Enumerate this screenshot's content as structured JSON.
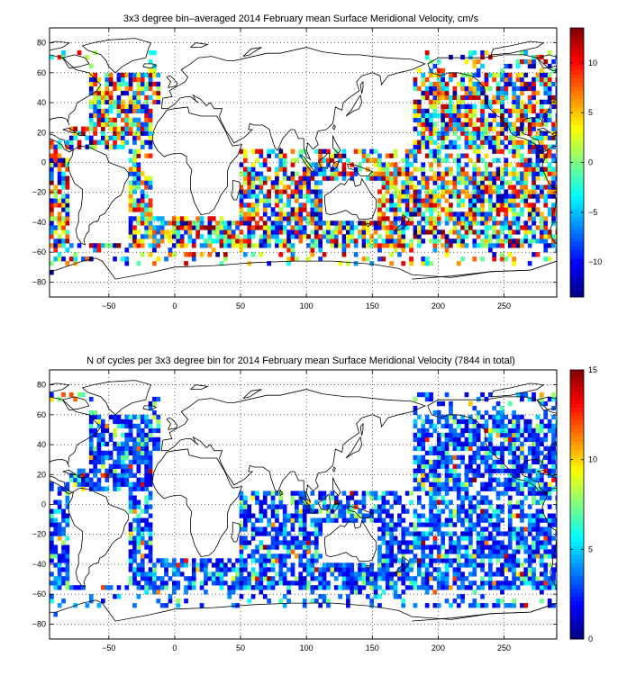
{
  "chart_data": [
    {
      "type": "heatmap",
      "title": "3x3 degree bin–averaged 2014 February mean Surface Meridional Velocity, cm/s",
      "xlim": [
        -95,
        290
      ],
      "ylim": [
        -90,
        90
      ],
      "x_ticks": [
        -50,
        0,
        50,
        100,
        150,
        200,
        250
      ],
      "x_tick_labels": [
        "−50",
        "0",
        "50",
        "100",
        "150",
        "200",
        "250"
      ],
      "y_ticks": [
        80,
        60,
        40,
        20,
        0,
        -20,
        -40,
        -60,
        -80
      ],
      "y_tick_labels": [
        "80",
        "60",
        "40",
        "20",
        "0",
        "−20",
        "−40",
        "−60",
        "−80"
      ],
      "grid": true,
      "colormap": "jet",
      "colorbar": {
        "range": [
          -13.5,
          13.5
        ],
        "ticks": [
          10,
          5,
          0,
          -5,
          -10
        ],
        "tick_labels": [
          "10",
          "5",
          "0",
          "−5",
          "−10"
        ]
      },
      "bin_size_deg": 3,
      "value_scale": [
        -13.5,
        13.5
      ]
    },
    {
      "type": "heatmap",
      "title": "N of cycles per 3x3 degree bin for 2014 February mean Surface Meridional Velocity (7844 in total)",
      "xlim": [
        -95,
        290
      ],
      "ylim": [
        -90,
        90
      ],
      "x_ticks": [
        -50,
        0,
        50,
        100,
        150,
        200,
        250
      ],
      "x_tick_labels": [
        "−50",
        "0",
        "50",
        "100",
        "150",
        "200",
        "250"
      ],
      "y_ticks": [
        80,
        60,
        40,
        20,
        0,
        -20,
        -40,
        -60,
        -80
      ],
      "y_tick_labels": [
        "80",
        "60",
        "40",
        "20",
        "0",
        "−20",
        "−40",
        "−60",
        "−80"
      ],
      "grid": true,
      "colormap": "jet",
      "colorbar": {
        "range": [
          0,
          15
        ],
        "ticks": [
          15,
          10,
          5,
          0
        ],
        "tick_labels": [
          "15",
          "10",
          "5",
          "0"
        ]
      },
      "bin_size_deg": 3,
      "value_scale": [
        0,
        15
      ]
    }
  ]
}
